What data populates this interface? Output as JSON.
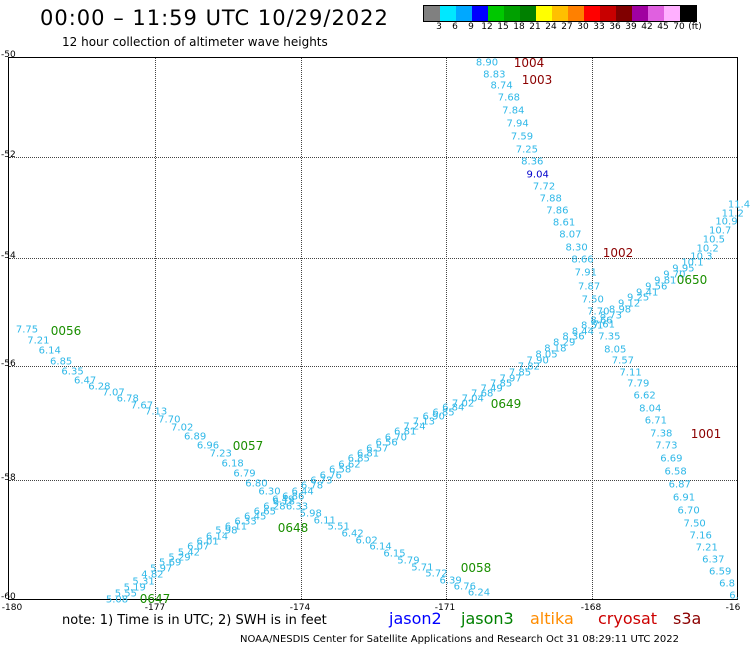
{
  "title": "00:00 – 11:59 UTC 10/29/2022",
  "subtitle": "12 hour collection of altimeter wave heights",
  "scale": {
    "labels": [
      "3",
      "6",
      "9",
      "12",
      "15",
      "18",
      "21",
      "24",
      "27",
      "30",
      "33",
      "36",
      "39",
      "42",
      "45",
      "70",
      "(ft)"
    ],
    "colors": [
      "#808080",
      "#00e8ff",
      "#00a8ff",
      "#0000ff",
      "#00c800",
      "#00a000",
      "#008000",
      "#ffff00",
      "#ffc000",
      "#ff8000",
      "#ff0000",
      "#c80000",
      "#800000",
      "#a000a0",
      "#e060e0",
      "#ffb0ff",
      "#000000"
    ]
  },
  "axes": {
    "y_ticks": [
      "-50",
      "-52",
      "-54",
      "-56",
      "-58",
      "-60"
    ],
    "x_ticks": [
      "-180",
      "-177",
      "-174",
      "-171",
      "-168",
      "-16"
    ]
  },
  "track_colors": {
    "default": "#2fb8e8",
    "dark": "#0000cc"
  },
  "tracks": [
    {
      "name": "track-1",
      "labels": [
        "7.75",
        "7.21",
        "6.14",
        "6.85",
        "6.35",
        "6.47",
        "6.28",
        "7.07",
        "6.78",
        "7.67",
        "7.13",
        "7.70",
        "7.02",
        "6.89",
        "6.96",
        "7.23",
        "6.18",
        "6.79",
        "6.80",
        "6.30",
        "6.49",
        "6.33",
        "5.98",
        "6.11",
        "5.51",
        "6.42",
        "6.02",
        "6.14",
        "6.15",
        "5.79",
        "5.71",
        "5.72",
        "6.39",
        "6.76",
        "6.24"
      ]
    },
    {
      "name": "track-2",
      "labels": [
        "5.08",
        "5.55",
        "5.19",
        "5.31",
        "4.82",
        "5.97",
        "5.69",
        "5.29",
        "5.42",
        "6.07",
        "6.01",
        "6.14",
        "5.98",
        "6.11",
        "6.33",
        "6.45",
        "6.65",
        "6.28",
        "6.18",
        "6.86",
        "6.44",
        "6.78",
        "6.73",
        "6.76",
        "6.58",
        "6.62",
        "6.85",
        "6.81",
        "6.57",
        "6.56",
        "6.70",
        "6.81",
        "7.24",
        "7.13",
        "6.90",
        "6.85",
        "6.84",
        "7.02",
        "7.04",
        "7.68",
        "7.49",
        "7.85",
        "7.97",
        "7.85",
        "7.82",
        "7.90",
        "8.05",
        "8.18",
        "8.29",
        "8.36",
        "8.44",
        "8.51",
        "8.66",
        "8.73",
        "8.98",
        "9.12",
        "9.25",
        "9.41",
        "9.56",
        "9.81",
        "9.70",
        "9.95",
        "10.1",
        "10.3",
        "10.2",
        "10.5",
        "10.7",
        "10.9",
        "11.2",
        "11.4"
      ]
    },
    {
      "name": "track-3",
      "labels": [
        "8.90",
        "8.83",
        "8.74",
        "7.68",
        "7.84",
        "7.94",
        "7.59",
        "7.25",
        "8.36",
        "9.04",
        "7.72",
        "7.88",
        "7.86",
        "8.61",
        "8.07",
        "8.30",
        "8.66",
        "7.91",
        "7.87",
        "7.50",
        "7.70",
        "7.61",
        "7.35",
        "8.05",
        "7.57",
        "7.11",
        "7.79",
        "6.62",
        "8.04",
        "6.71",
        "7.38",
        "7.73",
        "6.69",
        "6.58",
        "6.87",
        "6.91",
        "6.70",
        "7.50",
        "7.16",
        "7.21",
        "6.37",
        "6.59",
        "6.8",
        "6."
      ],
      "dark": [
        9
      ]
    }
  ],
  "time_marks": [
    {
      "text": "0056",
      "color": "green"
    },
    {
      "text": "0057",
      "color": "green"
    },
    {
      "text": "0648",
      "color": "green"
    },
    {
      "text": "0058",
      "color": "green"
    },
    {
      "text": "0647",
      "color": "green"
    },
    {
      "text": "0649",
      "color": "green"
    },
    {
      "text": "0650",
      "color": "green"
    },
    {
      "text": "1004",
      "color": "red"
    },
    {
      "text": "1003",
      "color": "red"
    },
    {
      "text": "1002",
      "color": "red"
    },
    {
      "text": "1001",
      "color": "red"
    }
  ],
  "note": "note:  1) Time is in UTC;  2) SWH is in feet",
  "legend": [
    {
      "text": "jason2",
      "color": "#0000ff"
    },
    {
      "text": "jason3",
      "color": "#008000"
    },
    {
      "text": "altika",
      "color": "#ff8c00"
    },
    {
      "text": "cryosat",
      "color": "#cc0000"
    },
    {
      "text": "s3a",
      "color": "#8b0000"
    }
  ],
  "credit": "NOAA/NESDIS Center for Satellite Applications and Research     Oct 31 08:29:11 UTC 2022"
}
